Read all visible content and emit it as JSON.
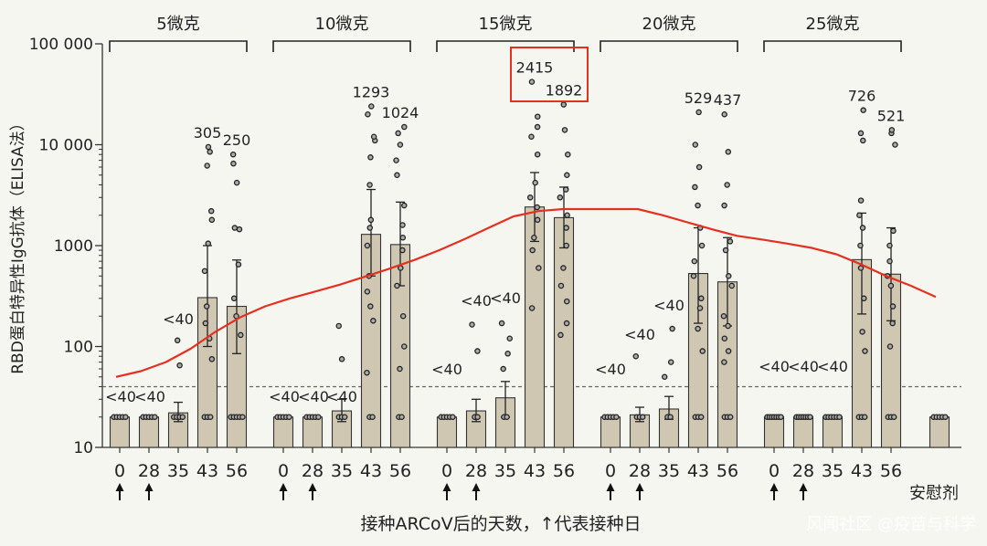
{
  "chart_data": {
    "type": "bar",
    "ylabel": "RBD蛋白特异性IgG抗体（ELISA法）",
    "xlabel": "接种ARCoV后的天数，↑代表接种日",
    "yscale": "log",
    "ylim": [
      10,
      100000
    ],
    "ytick_labels": [
      "10",
      "100",
      "1000",
      "10 000",
      "100 000"
    ],
    "ytick_values": [
      10,
      100,
      1000,
      10000,
      100000
    ],
    "detection_limit": 40,
    "bar_color": "#cfc7b1",
    "curve_color": "#e53020",
    "highlight_color": "#e53020",
    "groups": [
      {
        "name": "5微克",
        "days": [
          "0",
          "28",
          "35",
          "43",
          "56"
        ],
        "values": [
          20,
          20,
          22,
          305,
          250
        ],
        "labels": [
          "<40",
          "<40",
          "<40",
          "305",
          "250"
        ],
        "err_low": [
          20,
          20,
          18,
          100,
          85
        ],
        "err_high": [
          20,
          20,
          28,
          1000,
          720
        ],
        "arrows": [
          true,
          true,
          false,
          false,
          false
        ],
        "points": [
          [
            20,
            20,
            20,
            20,
            20
          ],
          [
            20,
            20,
            20,
            20,
            20
          ],
          [
            20,
            20,
            20,
            20,
            65,
            115
          ],
          [
            20,
            20,
            20,
            75,
            120,
            170,
            250,
            560,
            1050,
            1800,
            2200,
            6200,
            8500,
            9500
          ],
          [
            20,
            20,
            20,
            20,
            20,
            130,
            200,
            300,
            650,
            1450,
            1500,
            4200,
            6500,
            8000
          ]
        ]
      },
      {
        "name": "10微克",
        "days": [
          "0",
          "28",
          "35",
          "43",
          "56"
        ],
        "values": [
          20,
          20,
          23,
          1293,
          1024
        ],
        "labels": [
          "<40",
          "<40",
          "<40",
          "1293",
          "1024"
        ],
        "err_low": [
          20,
          20,
          18,
          500,
          400
        ],
        "err_high": [
          20,
          20,
          30,
          3600,
          2700
        ],
        "arrows": [
          true,
          true,
          false,
          false,
          false
        ],
        "points": [
          [
            20,
            20,
            20,
            20,
            20
          ],
          [
            20,
            20,
            20,
            20,
            20
          ],
          [
            20,
            20,
            20,
            75,
            160
          ],
          [
            20,
            20,
            55,
            180,
            250,
            350,
            500,
            1000,
            1500,
            1800,
            4000,
            7500,
            11000,
            12000,
            20000,
            24000
          ],
          [
            20,
            20,
            60,
            100,
            200,
            400,
            600,
            900,
            1200,
            1600,
            2500,
            5000,
            7000,
            10000,
            13000,
            15000
          ]
        ]
      },
      {
        "name": "15微克",
        "days": [
          "0",
          "28",
          "35",
          "43",
          "56"
        ],
        "values": [
          20,
          23,
          31,
          2415,
          1892
        ],
        "labels": [
          "<40",
          "<40",
          "<40",
          "2415",
          "1892"
        ],
        "err_low": [
          20,
          18,
          20,
          1100,
          950
        ],
        "err_high": [
          20,
          30,
          45,
          5300,
          3800
        ],
        "arrows": [
          true,
          true,
          false,
          false,
          false
        ],
        "points": [
          [
            20,
            20,
            20,
            20,
            20
          ],
          [
            20,
            20,
            90,
            165
          ],
          [
            20,
            20,
            60,
            85,
            120,
            170
          ],
          [
            240,
            600,
            900,
            1200,
            1800,
            2400,
            3000,
            4200,
            8000,
            12000,
            15000,
            19000,
            42000
          ],
          [
            130,
            170,
            280,
            400,
            600,
            1000,
            1500,
            2000,
            3000,
            3600,
            5000,
            8000,
            14000,
            25000
          ]
        ]
      },
      {
        "name": "20微克",
        "days": [
          "0",
          "28",
          "35",
          "43",
          "56"
        ],
        "values": [
          20,
          21,
          24,
          529,
          437
        ],
        "labels": [
          "<40",
          "<40",
          "<40",
          "529",
          "437"
        ],
        "err_low": [
          20,
          18,
          19,
          170,
          160
        ],
        "err_high": [
          20,
          25,
          32,
          1500,
          1200
        ],
        "arrows": [
          true,
          true,
          false,
          false,
          false
        ],
        "points": [
          [
            20,
            20,
            20,
            20,
            20
          ],
          [
            20,
            20,
            20,
            80
          ],
          [
            20,
            20,
            50,
            70,
            150
          ],
          [
            20,
            20,
            20,
            90,
            150,
            240,
            300,
            500,
            700,
            1000,
            1500,
            2500,
            3800,
            6000,
            10000,
            21000
          ],
          [
            20,
            20,
            20,
            70,
            90,
            120,
            160,
            200,
            400,
            500,
            900,
            1100,
            2500,
            4000,
            8500,
            20000
          ]
        ]
      },
      {
        "name": "25微克",
        "days": [
          "0",
          "28",
          "35",
          "43",
          "56"
        ],
        "values": [
          20,
          20,
          20,
          726,
          521
        ],
        "labels": [
          "<40",
          "<40",
          "<40",
          "726",
          "521"
        ],
        "err_low": [
          20,
          20,
          20,
          210,
          180
        ],
        "err_high": [
          20,
          20,
          20,
          2100,
          1500
        ],
        "arrows": [
          true,
          true,
          false,
          false,
          false
        ],
        "points": [
          [
            20,
            20,
            20,
            20,
            20,
            20,
            20
          ],
          [
            20,
            20,
            20,
            20,
            20,
            20,
            20
          ],
          [
            20,
            20,
            20,
            20,
            20,
            20
          ],
          [
            20,
            20,
            20,
            90,
            140,
            300,
            600,
            1000,
            1500,
            2000,
            2800,
            11000,
            13000,
            22000
          ],
          [
            20,
            20,
            20,
            100,
            170,
            250,
            400,
            500,
            700,
            1000,
            1400,
            10000,
            13000,
            14000
          ]
        ]
      }
    ],
    "placebo": {
      "label": "安慰剂",
      "value": 20,
      "points": [
        20,
        20,
        20,
        20,
        20
      ]
    },
    "highlight_labels": [
      "2415",
      "1892"
    ],
    "trend_curve": {
      "color": "#e53020",
      "values": [
        50,
        57,
        70,
        95,
        140,
        195,
        250,
        300,
        350,
        410,
        490,
        590,
        720,
        900,
        1150,
        1500,
        1950,
        2200,
        2300,
        2300,
        2300,
        2300,
        2000,
        1700,
        1450,
        1250,
        1150,
        1050,
        950,
        820,
        650,
        500,
        400,
        310
      ]
    }
  },
  "watermark": "风闻社区 @疫苗与科学"
}
